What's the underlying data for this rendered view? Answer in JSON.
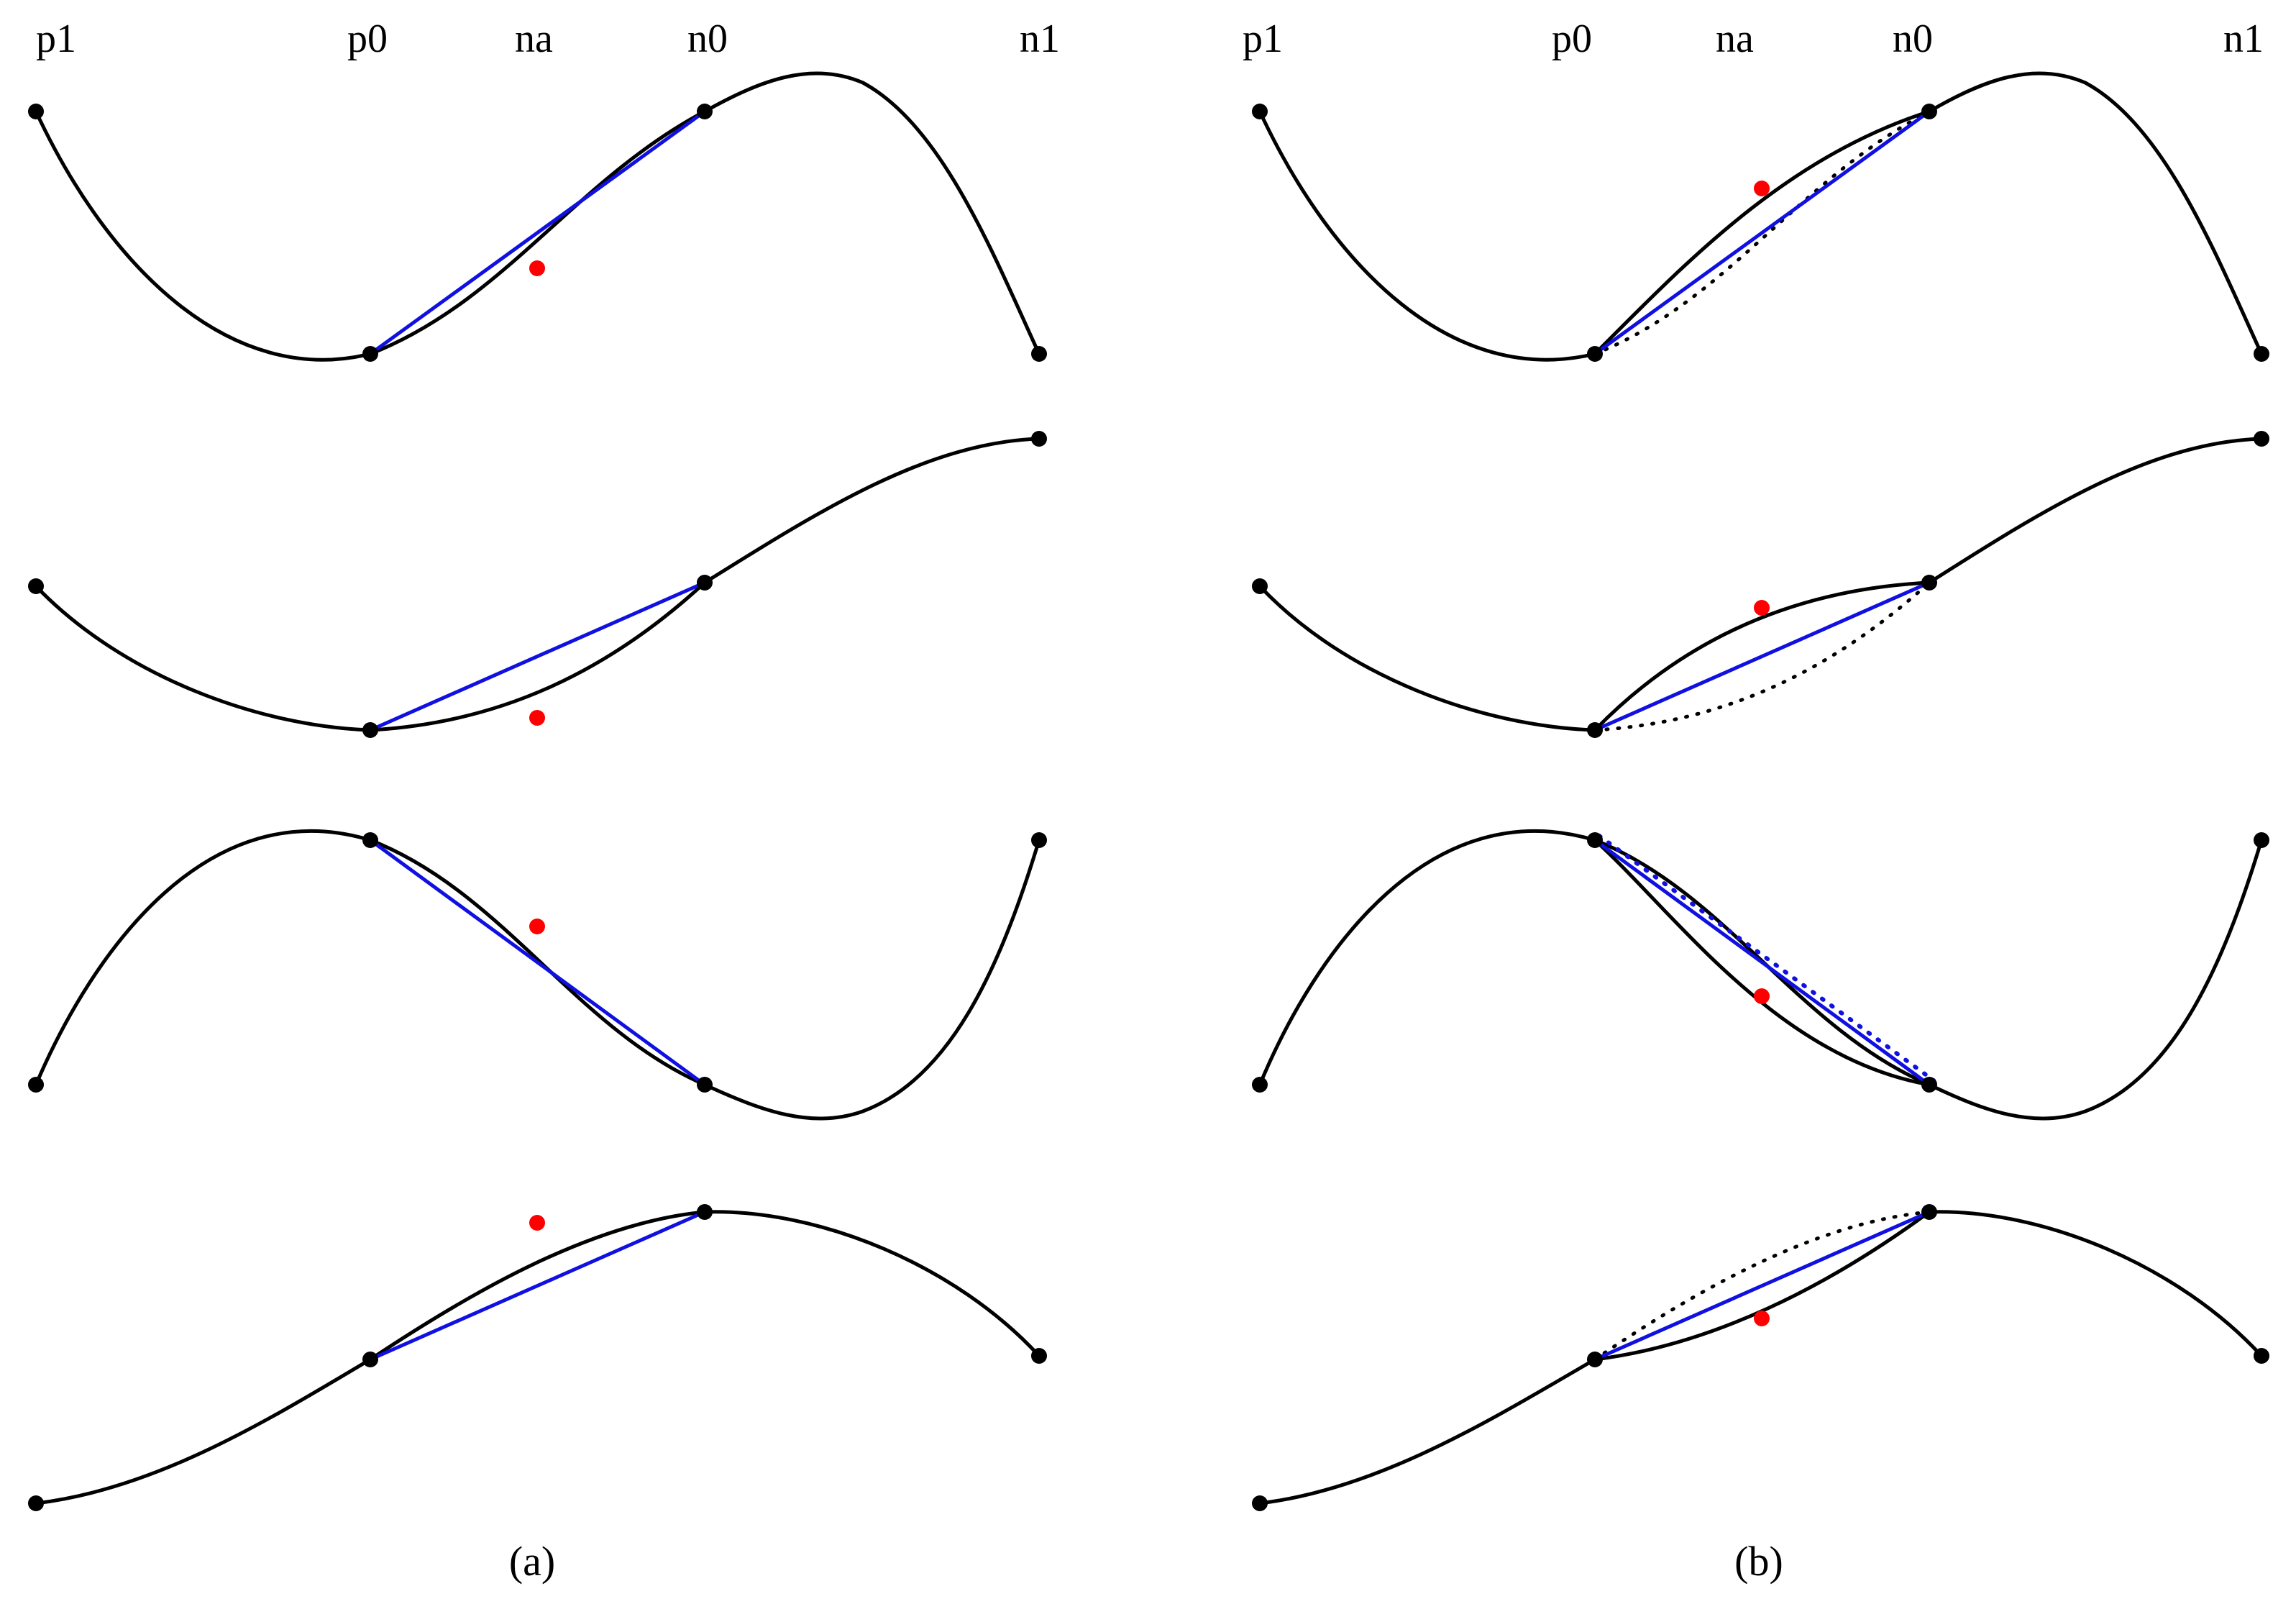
{
  "labels": {
    "a": {
      "p1": "p1",
      "p0": "p0",
      "na": "na",
      "n0": "n0",
      "n1": "n1"
    },
    "b": {
      "p1": "p1",
      "p0": "p0",
      "na": "na",
      "n0": "n0",
      "n1": "n1"
    }
  },
  "captions": {
    "a": "(a)",
    "b": "(b)"
  },
  "colors": {
    "curve": "#000000",
    "chord": "#1010e0",
    "approx_point": "#ff0000",
    "control_point": "#000000"
  }
}
